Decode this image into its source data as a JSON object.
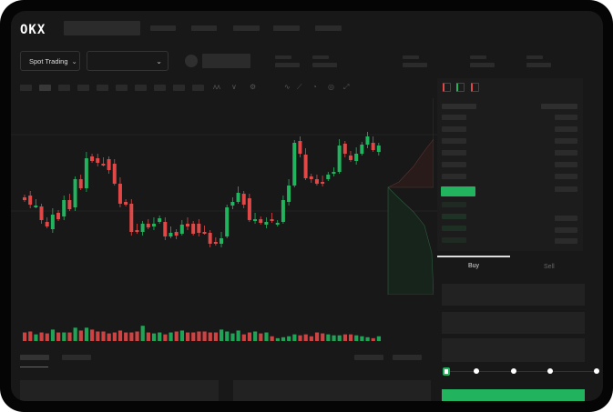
{
  "header": {
    "logo": "OKX",
    "nav_count": 5
  },
  "toolbar": {
    "market_select": "Spot Trading",
    "pair_select": "",
    "chevron": "chevron-down-icon"
  },
  "chart_tools": [
    "indicators-icon",
    "chart-type-icon",
    "settings-icon",
    "line-icon",
    "ruler-icon",
    "camera-icon",
    "target-icon",
    "fullscreen-icon"
  ],
  "order_form": {
    "buy_tab": "Buy",
    "sell_tab": "Sell",
    "slider_percent": 0
  },
  "colors": {
    "up": "#22b35e",
    "down": "#e04848",
    "background": "#181818",
    "panel": "#1c1c1c"
  },
  "chart_data": {
    "type": "candlestick",
    "candles": [
      [
        95,
        92
      ],
      [
        97,
        87
      ],
      [
        85,
        86
      ],
      [
        85,
        70
      ],
      [
        68,
        63
      ],
      [
        60,
        76
      ],
      [
        78,
        71
      ],
      [
        74,
        92
      ],
      [
        92,
        82
      ],
      [
        84,
        115
      ],
      [
        115,
        105
      ],
      [
        105,
        138
      ],
      [
        140,
        135
      ],
      [
        138,
        133
      ],
      [
        132,
        131
      ],
      [
        137,
        125
      ],
      [
        132,
        110
      ],
      [
        110,
        88
      ],
      [
        90,
        87
      ],
      [
        88,
        57
      ],
      [
        59,
        57
      ],
      [
        57,
        66
      ],
      [
        66,
        62
      ],
      [
        63,
        66
      ],
      [
        68,
        72
      ],
      [
        68,
        52
      ],
      [
        52,
        56
      ],
      [
        57,
        53
      ],
      [
        55,
        65
      ],
      [
        66,
        63
      ],
      [
        66,
        55
      ],
      [
        66,
        56
      ],
      [
        57,
        56
      ],
      [
        56,
        44
      ],
      [
        46,
        44
      ],
      [
        44,
        50
      ],
      [
        52,
        84
      ],
      [
        86,
        90
      ],
      [
        90,
        100
      ],
      [
        99,
        87
      ],
      [
        94,
        70
      ],
      [
        70,
        71
      ],
      [
        71,
        67
      ],
      [
        65,
        68
      ],
      [
        71,
        69
      ],
      [
        67,
        67
      ],
      [
        68,
        92
      ],
      [
        90,
        108
      ],
      [
        108,
        155
      ],
      [
        157,
        143
      ],
      [
        142,
        116
      ],
      [
        118,
        115
      ],
      [
        115,
        110
      ],
      [
        112,
        111
      ],
      [
        115,
        120
      ],
      [
        122,
        123
      ],
      [
        123,
        152
      ],
      [
        154,
        143
      ],
      [
        141,
        136
      ],
      [
        135,
        143
      ],
      [
        143,
        153
      ],
      [
        153,
        162
      ],
      [
        155,
        147
      ],
      [
        145,
        152
      ]
    ],
    "volumes": [
      9,
      10,
      7,
      9,
      8,
      12,
      9,
      9,
      9,
      14,
      11,
      14,
      12,
      10,
      10,
      8,
      9,
      11,
      9,
      9,
      10,
      16,
      9,
      8,
      9,
      7,
      9,
      10,
      11,
      9,
      9,
      10,
      10,
      9,
      9,
      12,
      10,
      8,
      11,
      7,
      9,
      10,
      8,
      9,
      5,
      3,
      4,
      5,
      7,
      6,
      7,
      5,
      9,
      8,
      7,
      6,
      6,
      7,
      7,
      6,
      5,
      4,
      3,
      5
    ],
    "grid": true
  }
}
